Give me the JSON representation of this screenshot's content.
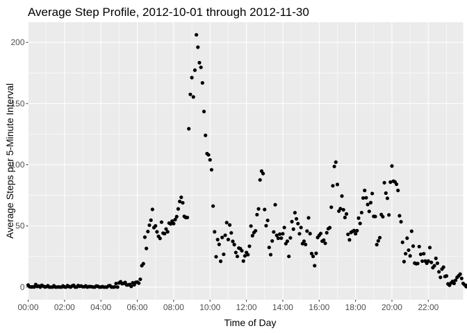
{
  "chart_data": {
    "type": "scatter",
    "title": "Average Step Profile, 2012-10-01 through 2012-11-30",
    "xlabel": "Time of Day",
    "ylabel": "Average Steps per 5-Minute Interval",
    "x_unit": "minutes since midnight",
    "xlim": [
      0,
      1435
    ],
    "ylim": [
      -10.3,
      216.5
    ],
    "x_ticks": [
      0,
      120,
      240,
      360,
      480,
      600,
      720,
      840,
      960,
      1080,
      1200,
      1320
    ],
    "x_tick_labels": [
      "00:00",
      "02:00",
      "04:00",
      "06:00",
      "08:00",
      "10:00",
      "12:00",
      "14:00",
      "16:00",
      "18:00",
      "20:00",
      "22:00"
    ],
    "y_ticks": [
      0,
      50,
      100,
      150,
      200
    ],
    "y_tick_labels": [
      "0",
      "50",
      "100",
      "150",
      "200"
    ],
    "grid": true,
    "legend": "none",
    "point_color": "#000000",
    "panel_color": "#ebebeb",
    "grid_color": "#ffffff",
    "points_y": [
      1.7,
      0.3,
      0.1,
      0.2,
      0.1,
      2.1,
      0.5,
      0.9,
      0.0,
      1.5,
      0.8,
      0.1,
      0.3,
      1.1,
      0.0,
      0.0,
      0.0,
      1.1,
      0.0,
      0.0,
      0.2,
      0.0,
      0.0,
      1.0,
      0.1,
      0.0,
      1.2,
      0.4,
      0.0,
      0.9,
      1.5,
      0.0,
      0.0,
      1.3,
      0.7,
      0.9,
      0.3,
      0.3,
      1.0,
      0.0,
      0.4,
      0.4,
      0.3,
      0.0,
      0.0,
      0.9,
      0.7,
      0.0,
      0.0,
      0.4,
      0.0,
      0.0,
      0.0,
      1.0,
      1.2,
      0.0,
      0.0,
      0.1,
      2.9,
      0.0,
      3.4,
      4.4,
      2.8,
      3.0,
      3.8,
      1.7,
      1.8,
      2.1,
      0.6,
      3.5,
      1.9,
      3.9,
      4.1,
      3.2,
      6.4,
      17.5,
      19.1,
      40.8,
      31.6,
      45.4,
      50.6,
      54.7,
      63.5,
      48.6,
      50.0,
      45.2,
      41.5,
      39.8,
      53.1,
      44.1,
      43.7,
      47.5,
      45.2,
      52.3,
      51.6,
      53.9,
      51.9,
      55.2,
      57.6,
      63.9,
      70.0,
      73.4,
      68.9,
      57.8,
      56.9,
      56.9,
      129.4,
      157.5,
      171.2,
      155.4,
      177.3,
      206.2,
      196.1,
      183.4,
      179.6,
      166.9,
      143.5,
      124.0,
      109.1,
      108.1,
      104.0,
      95.9,
      66.2,
      45.2,
      24.8,
      38.8,
      34.9,
      21.1,
      40.6,
      26.8,
      42.4,
      52.7,
      38.9,
      50.8,
      44.3,
      37.4,
      34.7,
      28.3,
      25.1,
      31.9,
      31.4,
      29.7,
      21.3,
      25.5,
      28.3,
      26.5,
      33.4,
      49.9,
      42.0,
      44.6,
      46.0,
      59.2,
      63.9,
      87.6,
      94.8,
      92.8,
      63.4,
      50.2,
      54.5,
      32.4,
      26.5,
      37.7,
      45.1,
      67.3,
      42.3,
      39.9,
      43.3,
      40.0,
      43.6,
      48.7,
      35.5,
      37.5,
      25.1,
      40.2,
      53.5,
      47.4,
      60.8,
      55.8,
      51.9,
      43.6,
      48.7,
      35.5,
      37.5,
      34.8,
      45.8,
      56.6,
      43.7,
      27.4,
      25.1,
      17.5,
      27.6,
      40.6,
      42.3,
      43.8,
      37.5,
      38.4,
      35.8,
      44.4,
      47.7,
      48.6,
      65.3,
      82.8,
      98.6,
      102.1,
      83.9,
      62.1,
      64.1,
      74.4,
      63.2,
      56.9,
      59.8,
      43.1,
      38.6,
      44.7,
      45.5,
      46.2,
      43.6,
      46.1,
      56.4,
      52.0,
      60.9,
      72.8,
      79.0,
      73.0,
      67.5,
      61.9,
      69.0,
      76.5,
      57.8,
      57.7,
      34.7,
      37.8,
      40.4,
      59.3,
      57.5,
      85.3,
      76.8,
      72.6,
      59.0,
      85.8,
      99.0,
      86.6,
      86.0,
      84.1,
      79.0,
      58.3,
      53.4,
      36.6,
      20.8,
      27.3,
      40.0,
      30.2,
      25.5,
      45.7,
      33.5,
      19.6,
      19.1,
      19.3,
      33.1,
      26.8,
      21.2,
      27.3,
      21.3,
      19.5,
      21.3,
      32.3,
      20.2,
      15.9,
      17.4,
      23.5,
      19.5,
      12.5,
      8.0,
      14.7,
      16.3,
      8.7,
      9.1,
      2.6,
      1.5,
      3.4,
      4.7,
      3.0,
      5.6,
      8.0,
      9.2,
      10.6,
      7.1,
      3.0,
      1.8,
      0.4,
      1.6,
      4.6,
      2.9,
      3.2,
      0.8,
      0.6,
      1.6,
      4.6,
      3.3,
      2.8,
      3.8,
      5.4,
      4.2,
      1.1,
      1.6,
      1.2,
      0.0
    ]
  }
}
